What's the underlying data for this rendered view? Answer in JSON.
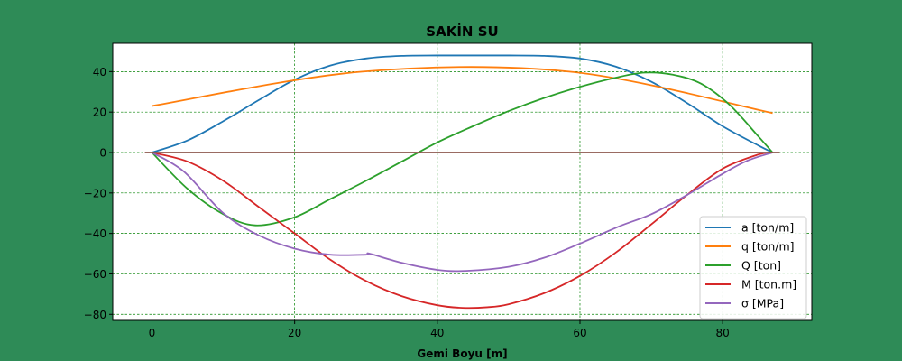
{
  "chart_data": {
    "type": "line",
    "title": "SAKİN SU",
    "xlabel": "Gemi Boyu [m]",
    "ylabel": "",
    "xlim": [
      -5.5,
      92.5
    ],
    "ylim": [
      -83,
      54
    ],
    "xticks": [
      0,
      20,
      40,
      60,
      80
    ],
    "yticks": [
      -80,
      -60,
      -40,
      -20,
      0,
      20,
      40
    ],
    "grid": true,
    "legend_position": "lower-right",
    "background": "#2e8b57",
    "series": [
      {
        "name": "a [ton/m]",
        "color": "#1f77b4",
        "x": [
          0,
          5,
          10,
          15,
          20,
          25,
          30,
          35,
          40,
          45,
          50,
          55,
          60,
          65,
          70,
          75,
          80,
          85,
          87
        ],
        "y": [
          0,
          6,
          15.5,
          26,
          36,
          43,
          46.5,
          47.8,
          48,
          48,
          48,
          47.8,
          46.5,
          42.5,
          35,
          24.5,
          13,
          3.5,
          0
        ]
      },
      {
        "name": "q [ton/m]",
        "color": "#ff7f0e",
        "x": [
          0,
          29.5,
          58.5,
          87
        ],
        "y": [
          23,
          40,
          40,
          19.5
        ]
      },
      {
        "name": "Q [ton]",
        "color": "#2ca02c",
        "x": [
          0,
          5,
          10,
          14.5,
          20,
          25,
          30,
          35,
          40,
          45,
          50,
          55,
          60,
          65,
          69,
          73,
          77,
          81,
          85,
          87
        ],
        "y": [
          0,
          -18,
          -30.5,
          -36,
          -32,
          -23,
          -14,
          -4.5,
          5,
          13,
          20.5,
          27,
          32.5,
          37,
          39.5,
          38.5,
          34,
          23.5,
          8,
          0
        ]
      },
      {
        "name": "M [ton.m]",
        "color": "#d62728",
        "x": [
          0,
          5,
          10,
          15,
          20,
          25,
          30,
          35,
          40,
          43.5,
          47,
          50,
          55,
          60,
          65,
          70,
          75,
          80,
          85,
          87
        ],
        "y": [
          0,
          -4.5,
          -14,
          -27,
          -40,
          -53,
          -63.5,
          -71,
          -75.5,
          -76.8,
          -76.5,
          -75,
          -69.5,
          -61,
          -49.5,
          -35.5,
          -21,
          -8,
          -1,
          0
        ]
      },
      {
        "name": "σ [MPa]",
        "color": "#9467bd",
        "x": [
          0,
          4.5,
          10,
          15,
          20,
          25,
          30,
          30.5,
          35,
          40,
          44,
          50,
          55,
          60,
          65.5,
          70,
          75,
          80,
          83.5,
          87
        ],
        "y": [
          0,
          -9.5,
          -30,
          -41,
          -47.5,
          -50.5,
          -50.5,
          -50,
          -54.5,
          -58,
          -58.5,
          -56.5,
          -52,
          -45,
          -36.5,
          -30.5,
          -21,
          -10.5,
          -4,
          0
        ]
      },
      {
        "name": "",
        "color": "#8c564b",
        "x": [
          -1,
          88
        ],
        "y": [
          0,
          0
        ]
      }
    ]
  }
}
